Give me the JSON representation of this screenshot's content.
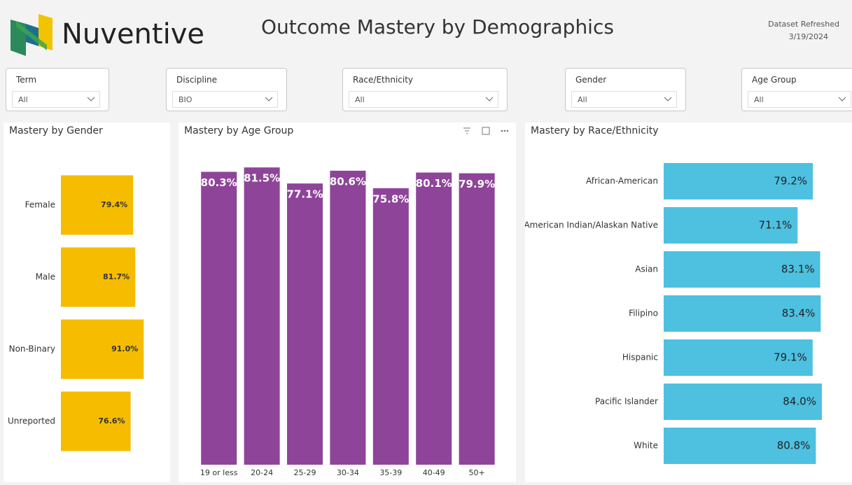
{
  "header": {
    "brand": "Nuventive",
    "title": "Outcome Mastery by Demographics",
    "refresh_label": "Dataset Refreshed",
    "refresh_date": "3/19/2024"
  },
  "filters": [
    {
      "label": "Term",
      "value": "All"
    },
    {
      "label": "Discipline",
      "value": "BIO"
    },
    {
      "label": "Race/Ethnicity",
      "value": "All"
    },
    {
      "label": "Gender",
      "value": "All"
    },
    {
      "label": "Age Group",
      "value": "All"
    }
  ],
  "chart_data": [
    {
      "type": "bar",
      "orientation": "horizontal",
      "title": "Mastery by Gender",
      "categories": [
        "Female",
        "Male",
        "Non-Binary",
        "Unreported"
      ],
      "values": [
        79.4,
        81.7,
        91.0,
        76.6
      ],
      "value_labels": [
        "79.4%",
        "81.7%",
        "91.0%",
        "76.6%"
      ],
      "color": "#f5bc00",
      "xlim": [
        0,
        100
      ]
    },
    {
      "type": "bar",
      "orientation": "vertical",
      "title": "Mastery by Age Group",
      "categories": [
        "19 or less",
        "20-24",
        "25-29",
        "30-34",
        "35-39",
        "40-49",
        "50+"
      ],
      "values": [
        80.3,
        81.5,
        77.1,
        80.6,
        75.8,
        80.1,
        79.9
      ],
      "value_labels": [
        "80.3%",
        "81.5%",
        "77.1%",
        "80.6%",
        "75.8%",
        "80.1%",
        "79.9%"
      ],
      "color": "#8e4499",
      "ylim": [
        0,
        85
      ]
    },
    {
      "type": "bar",
      "orientation": "horizontal",
      "title": "Mastery by Race/Ethnicity",
      "categories": [
        "African-American",
        "American Indian/Alaskan Native",
        "Asian",
        "Filipino",
        "Hispanic",
        "Pacific Islander",
        "White"
      ],
      "values": [
        79.2,
        71.1,
        83.1,
        83.4,
        79.1,
        84.0,
        80.8
      ],
      "value_labels": [
        "79.2%",
        "71.1%",
        "83.1%",
        "83.4%",
        "79.1%",
        "84.0%",
        "80.8%"
      ],
      "color": "#4ec0e0",
      "xlim": [
        0,
        100
      ]
    }
  ]
}
